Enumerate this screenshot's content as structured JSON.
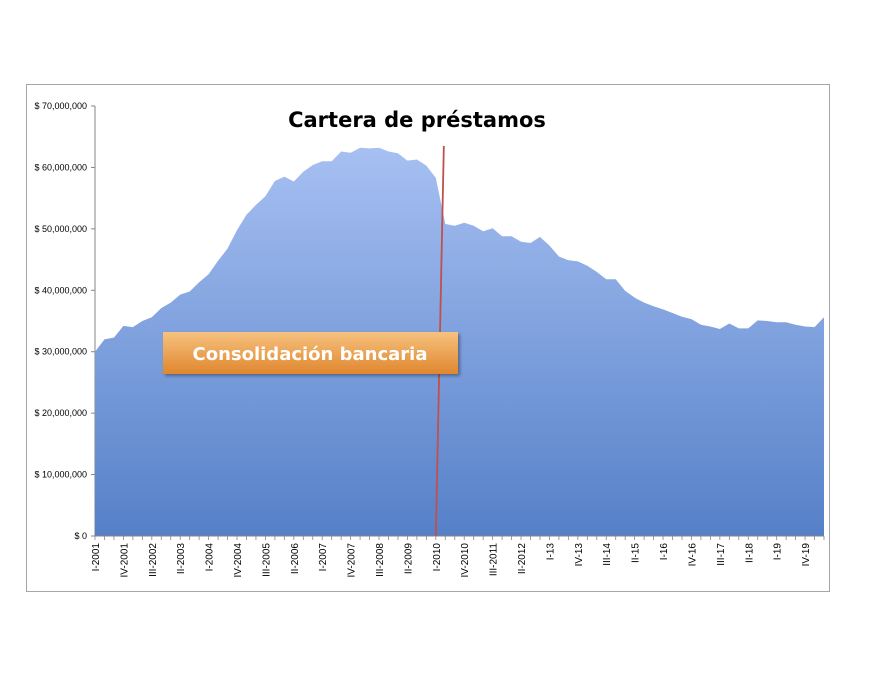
{
  "chart_data": {
    "type": "area",
    "title": "Cartera de préstamos",
    "xlabel": "",
    "ylabel": "",
    "ylim": [
      0,
      70000000
    ],
    "y_ticks": [
      "$ 0",
      "$ 10,000,000",
      "$ 20,000,000",
      "$ 30,000,000",
      "$ 40,000,000",
      "$ 50,000,000",
      "$ 60,000,000",
      "$ 70,000,000"
    ],
    "y_tick_values": [
      0,
      10000000,
      20000000,
      30000000,
      40000000,
      50000000,
      60000000,
      70000000
    ],
    "x_tick_labels": [
      "I-2001",
      "IV-2001",
      "III-2002",
      "II-2003",
      "I-2004",
      "IV-2004",
      "III-2005",
      "II-2006",
      "I-2007",
      "IV-2007",
      "III-2008",
      "II-2009",
      "I-2010",
      "IV-2010",
      "III-2011",
      "II-2012",
      "I-13",
      "IV-13",
      "III-14",
      "II-15",
      "I-16",
      "IV-16",
      "III-17",
      "II-18",
      "I-19",
      "IV-19"
    ],
    "series": [
      {
        "values": [
          30000000,
          32000000,
          32300000,
          34200000,
          34000000,
          35000000,
          35600000,
          37100000,
          38000000,
          39300000,
          39800000,
          41300000,
          42600000,
          44800000,
          46800000,
          49800000,
          52300000,
          53900000,
          55300000,
          57800000,
          58500000,
          57700000,
          59300000,
          60400000,
          61000000,
          61000000,
          62600000,
          62400000,
          63200000,
          63100000,
          63200000,
          62600000,
          62300000,
          61100000,
          61300000,
          60300000,
          58300000,
          50800000,
          50500000,
          51000000,
          50500000,
          49600000,
          50100000,
          48800000,
          48800000,
          47900000,
          47700000,
          48700000,
          47300000,
          45500000,
          44900000,
          44700000,
          44000000,
          43000000,
          41800000,
          41800000,
          39900000,
          38800000,
          38000000,
          37400000,
          36900000,
          36300000,
          35700000,
          35300000,
          34400000,
          34100000,
          33700000,
          34600000,
          33800000,
          33800000,
          35100000,
          35000000,
          34800000,
          34800000,
          34400000,
          34100000,
          34000000,
          35600000
        ]
      }
    ],
    "annotations": [
      "Consolidación bancaria"
    ],
    "marker_line_at": "I-2010",
    "colors": {
      "area_top": "#a7c0f2",
      "area_bottom": "#5580c8",
      "marker_line": "#c0504d",
      "callout_top": "#f6c27f",
      "callout_bottom": "#e0862e",
      "frame": "#a6a6a6",
      "axis": "#868686"
    },
    "grid": false,
    "legend": "none"
  }
}
